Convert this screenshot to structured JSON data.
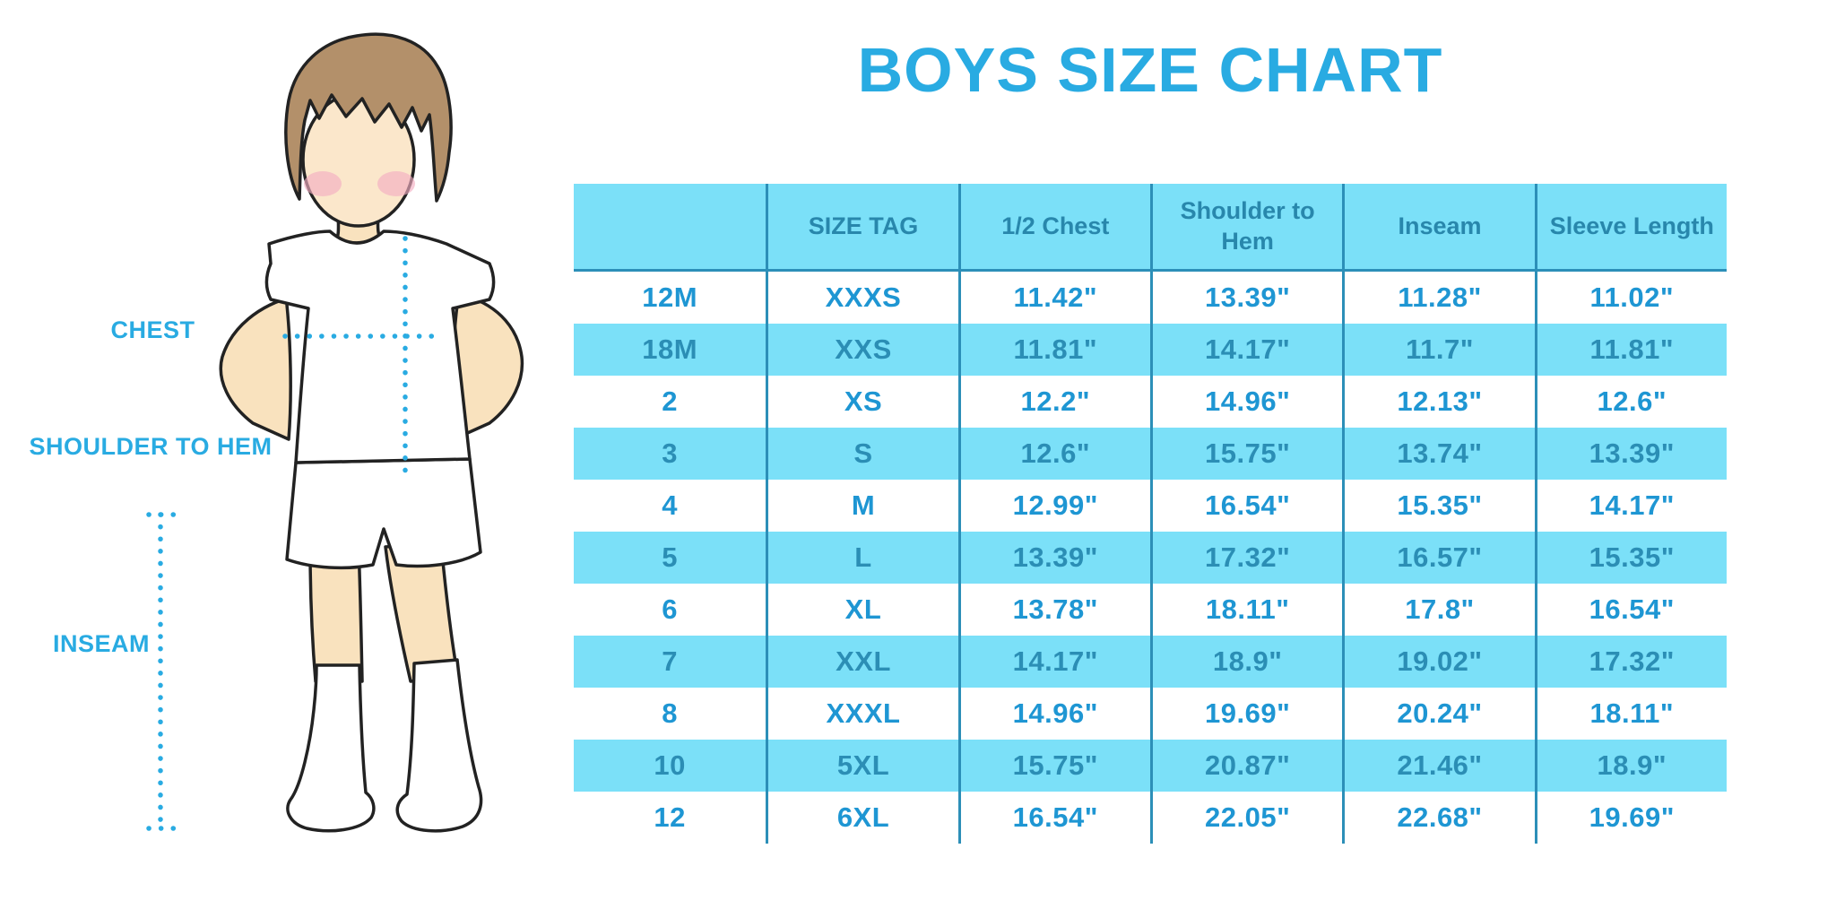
{
  "title": "BOYS SIZE CHART",
  "figure": {
    "chest_label": "CHEST",
    "shoulder_to_hem_label": "SHOULDER TO HEM",
    "inseam_label": "INSEAM"
  },
  "colors": {
    "accent_blue": "#29ABE2",
    "table_fill": "#7BE0F8",
    "table_line": "#2C8FB8",
    "header_text": "#2887AC",
    "row_text": "#1E96D3",
    "alt_row_text": "#2B8EB5"
  },
  "chart_data": {
    "type": "table",
    "title": "BOYS SIZE CHART",
    "columns": [
      "",
      "SIZE TAG",
      "1/2 Chest",
      "Shoulder to Hem",
      "Inseam",
      "Sleeve Length"
    ],
    "rows": [
      [
        "12M",
        "XXXS",
        "11.42\"",
        "13.39\"",
        "11.28\"",
        "11.02\""
      ],
      [
        "18M",
        "XXS",
        "11.81\"",
        "14.17\"",
        "11.7\"",
        "11.81\""
      ],
      [
        "2",
        "XS",
        "12.2\"",
        "14.96\"",
        "12.13\"",
        "12.6\""
      ],
      [
        "3",
        "S",
        "12.6\"",
        "15.75\"",
        "13.74\"",
        "13.39\""
      ],
      [
        "4",
        "M",
        "12.99\"",
        "16.54\"",
        "15.35\"",
        "14.17\""
      ],
      [
        "5",
        "L",
        "13.39\"",
        "17.32\"",
        "16.57\"",
        "15.35\""
      ],
      [
        "6",
        "XL",
        "13.78\"",
        "18.11\"",
        "17.8\"",
        "16.54\""
      ],
      [
        "7",
        "XXL",
        "14.17\"",
        "18.9\"",
        "19.02\"",
        "17.32\""
      ],
      [
        "8",
        "XXXL",
        "14.96\"",
        "19.69\"",
        "20.24\"",
        "18.11\""
      ],
      [
        "10",
        "5XL",
        "15.75\"",
        "20.87\"",
        "21.46\"",
        "18.9\""
      ],
      [
        "12",
        "6XL",
        "16.54\"",
        "22.05\"",
        "22.68\"",
        "19.69\""
      ]
    ]
  }
}
